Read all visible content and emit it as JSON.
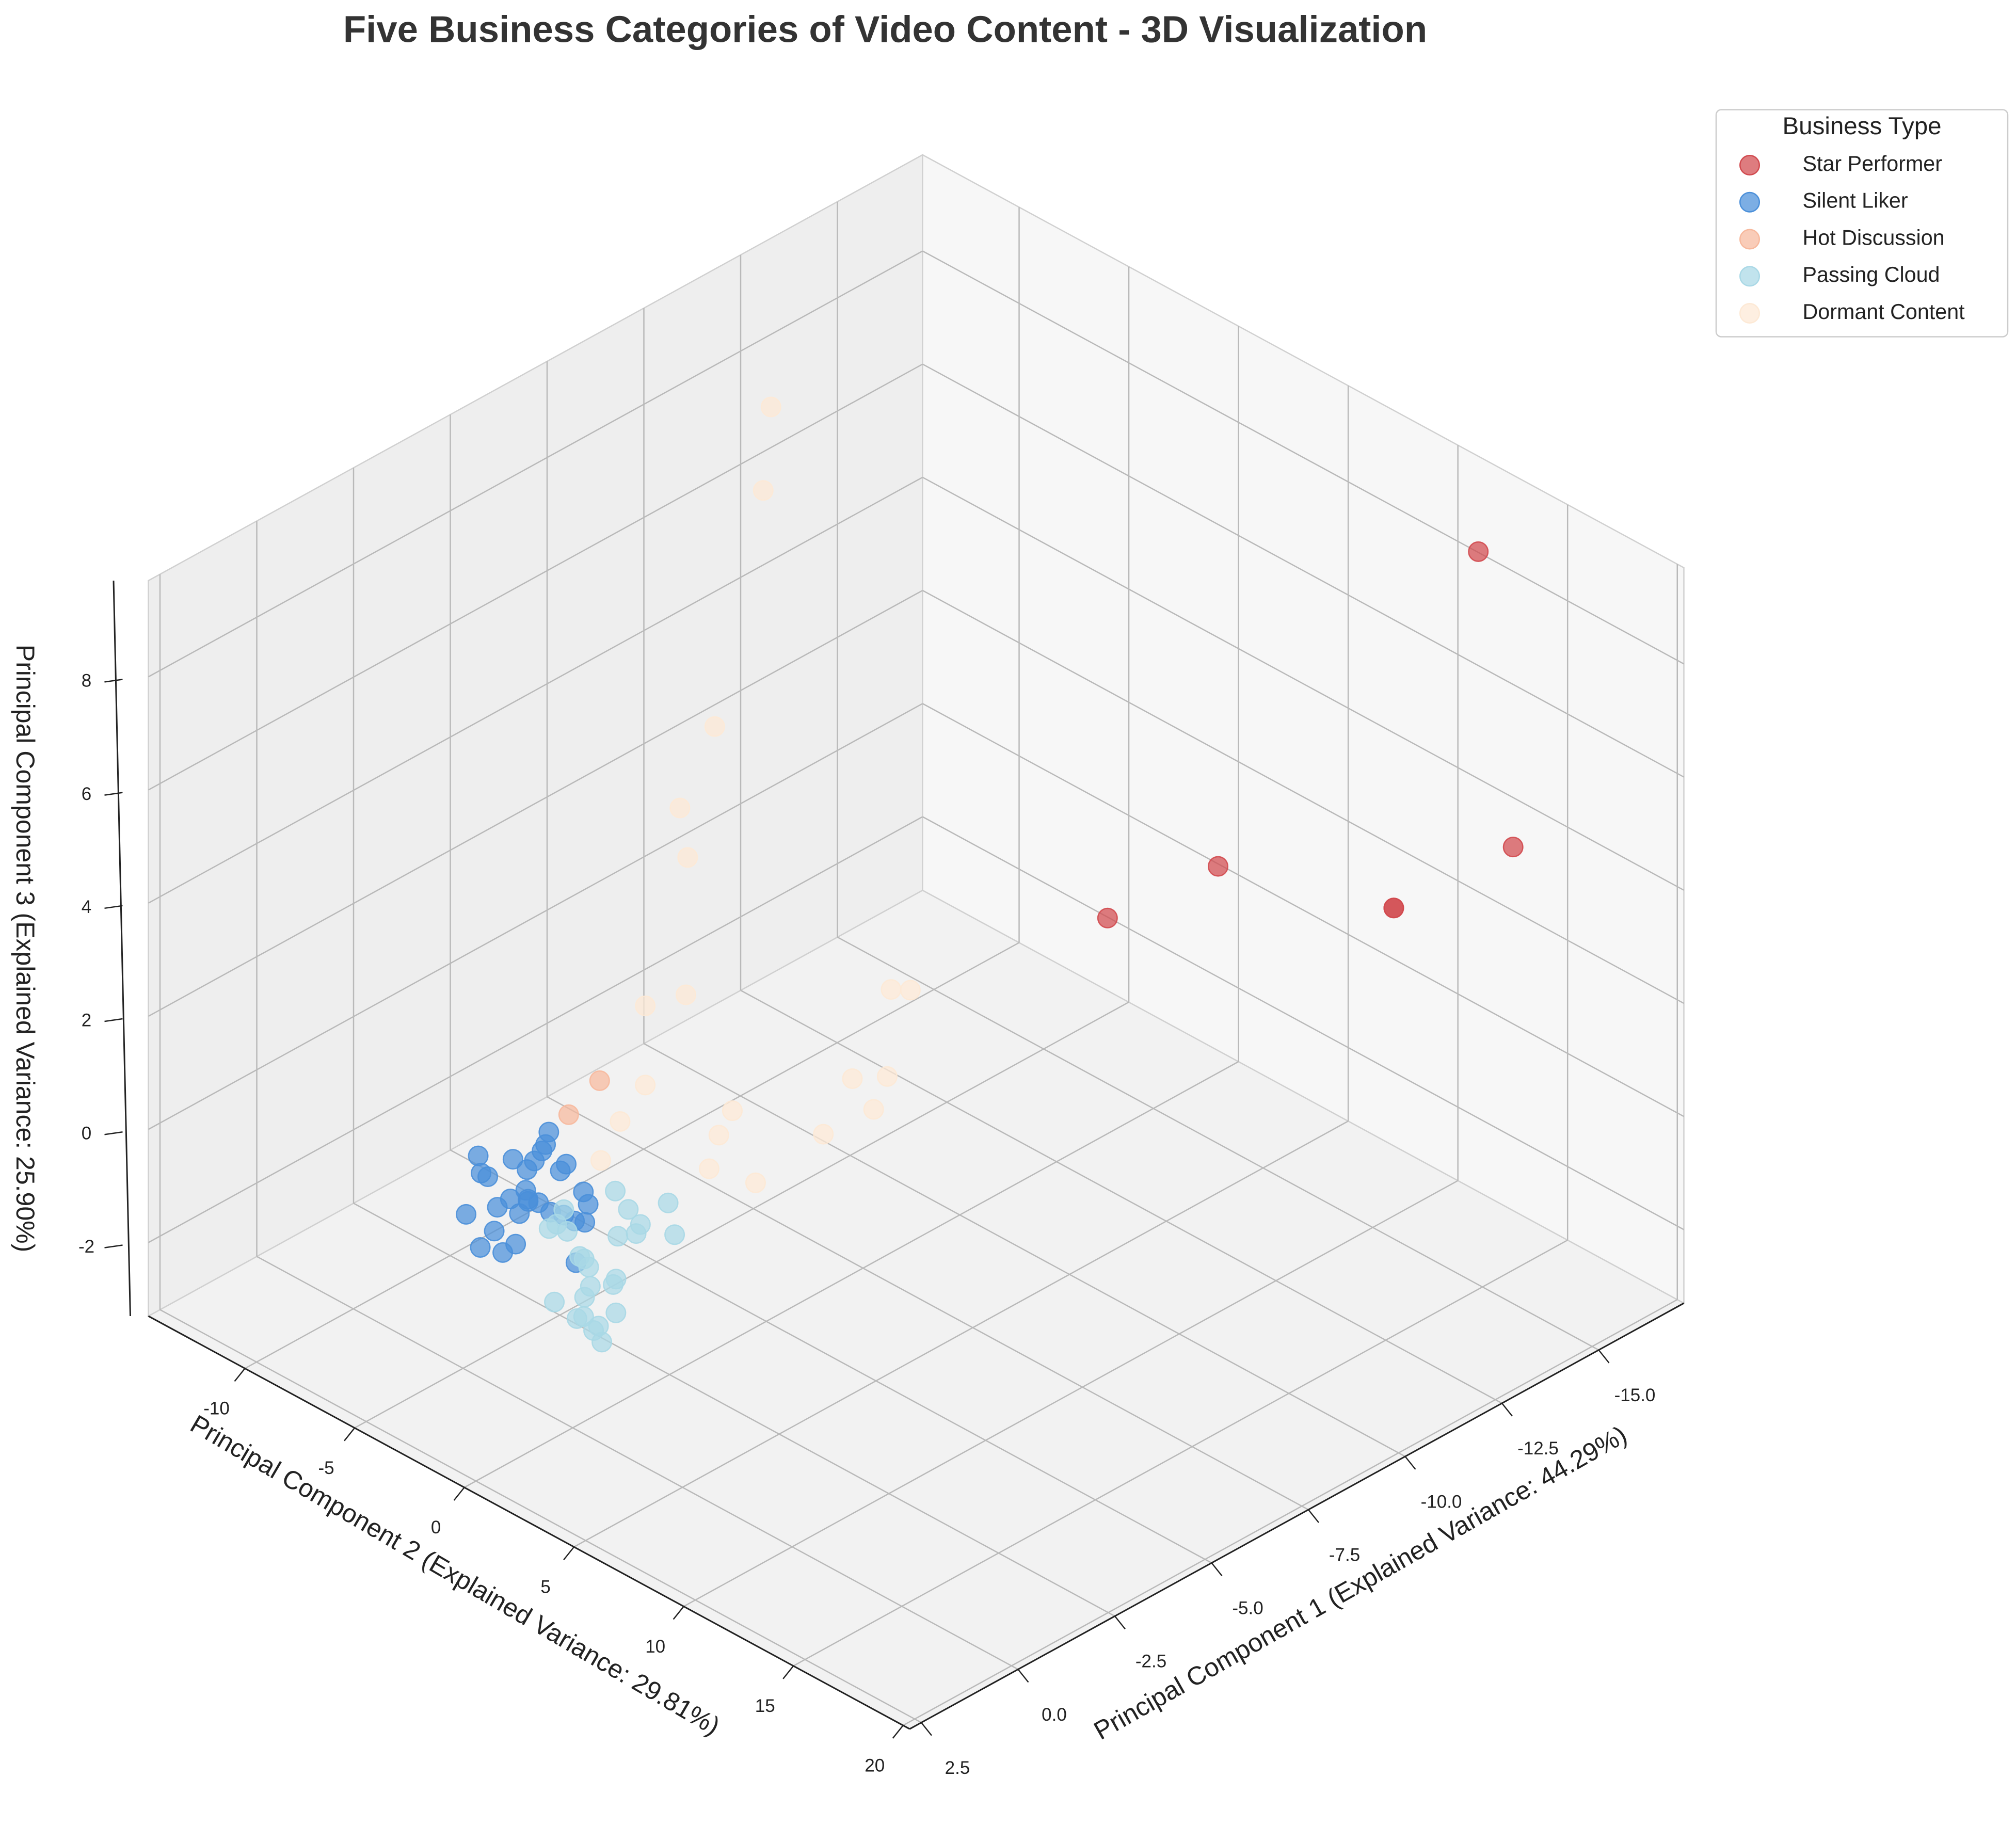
{
  "chart_data": {
    "type": "scatter3d",
    "title": "Five Business Categories of Video Content - 3D Visualization",
    "xlabel": "Principal Component 1 (Explained Variance: 44.29%)",
    "ylabel": "Principal Component 2 (Explained Variance: 29.81%)",
    "zlabel": "Principal Component 3 (Explained Variance: 25.90%)",
    "legend_title": "Business Type",
    "legend_position": "upper right",
    "grid": true,
    "xlim": [
      -17.2,
      2.8
    ],
    "ylim": [
      -14.4,
      20.3
    ],
    "zlim": [
      -3.3,
      9.7
    ],
    "xticks": [
      {
        "value": -15,
        "label": "-15.0"
      },
      -12.5,
      {
        "value": -10,
        "label": "-10.0"
      },
      -7.5,
      {
        "value": -5,
        "label": "-5.0"
      },
      -2.5,
      {
        "value": 0,
        "label": "0.0"
      },
      2.5
    ],
    "yticks": [
      -10,
      -5,
      0,
      5,
      10,
      15,
      20
    ],
    "zticks": [
      -2,
      0,
      2,
      4,
      6,
      8
    ],
    "series": [
      {
        "name": "Star Performer",
        "color": "#d1494e",
        "x": [
          -14.1,
          -15.0,
          -15.6,
          -15.6,
          -16.7,
          -15.8
        ],
        "y": [
          -0.5,
          2.95,
          9.9,
          9.9,
          13.4,
          13.4
        ],
        "z": [
          0.3,
          1.6,
          2.1,
          2.1,
          3.5,
          9.06
        ]
      },
      {
        "name": "Silent Liker",
        "color": "#4a8fd9",
        "x": [
          -0.15,
          0.3,
          -0.6,
          0.6,
          -0.9,
          0.1,
          -0.4,
          0.8,
          -0.2,
          0.4,
          -0.7,
          0.0,
          0.5,
          -0.3,
          -1.0,
          0.2,
          0.7,
          -0.5,
          0.1,
          -0.8,
          0.3,
          -0.1,
          0.6,
          -0.4,
          0.0,
          -0.6,
          0.4,
          -0.2,
          0.9,
          -0.9
        ],
        "y": [
          -2.3,
          -1.5,
          -3.2,
          -0.5,
          -2.0,
          -4.0,
          -1.0,
          -2.8,
          0.2,
          -3.6,
          -1.8,
          -2.6,
          -1.2,
          -4.4,
          -3.0,
          0.5,
          -2.2,
          -0.8,
          -3.4,
          -2.5,
          -1.9,
          -2.9,
          -3.8,
          0.0,
          -1.4,
          -3.9,
          -0.3,
          -2.1,
          -1.6,
          -1.1
        ],
        "z": [
          0.2,
          0.5,
          0.0,
          0.8,
          -0.3,
          0.4,
          1.0,
          -0.4,
          0.3,
          0.9,
          0.6,
          -0.6,
          1.2,
          0.1,
          0.7,
          -0.2,
          0.4,
          0.0,
          -0.5,
          1.1,
          0.2,
          0.8,
          -0.1,
          0.5,
          1.3,
          -0.3,
          0.6,
          0.9,
          -0.2,
          0.3
        ]
      },
      {
        "name": "Hot Discussion",
        "color": "#f7b89c",
        "x": [
          -1.2,
          -2.0
        ],
        "y": [
          -2.3,
          -2.3
        ],
        "z": [
          1.3,
          1.6
        ]
      },
      {
        "name": "Passing Cloud",
        "color": "#a9d8e6",
        "x": [
          -1.6,
          -1.2,
          -2.0,
          -1.4,
          -1.8,
          -1.0,
          -2.3,
          -1.5,
          -1.9,
          -1.3,
          -2.6,
          -3.6,
          -3.2,
          -2.8,
          -1.7,
          -1.9,
          -2.0,
          -1.1,
          -2.1,
          -1.4,
          -3.0,
          -1.6,
          -2.4,
          -1.8,
          -1.3
        ],
        "y": [
          -2.3,
          -1.8,
          -2.8,
          -3.2,
          -1.2,
          -2.6,
          -2.0,
          -0.8,
          -3.6,
          -2.1,
          -1.5,
          -2.0,
          -1.0,
          -3.0,
          -2.5,
          -2.4,
          -2.2,
          -1.4,
          -2.9,
          -0.5,
          -2.4,
          -3.9,
          -1.7,
          -2.0,
          -2.7
        ],
        "z": [
          -1.4,
          -1.1,
          -1.8,
          -0.9,
          -1.6,
          -2.0,
          -1.2,
          -1.5,
          -1.3,
          -2.3,
          -1.0,
          -1.1,
          -1.3,
          -0.8,
          -2.5,
          -2.8,
          -3.0,
          -1.7,
          -2.2,
          -1.9,
          -1.5,
          -1.2,
          -0.7,
          -2.6,
          -0.5
        ]
      },
      {
        "name": "Dormant Content",
        "color": "#fde9d5",
        "x": [
          -11.3,
          -11.1,
          -6.9,
          -6.0,
          -6.2,
          -3.15,
          -4.2,
          -9.5,
          -10.0,
          -8.5,
          -9.4,
          -9.05,
          -5.4,
          -5.05,
          -7.75,
          -4.8,
          -6.0,
          -2.5,
          -3.15,
          -2.0
        ],
        "y": [
          -10.9,
          -10.9,
          -5.7,
          -5.7,
          -5.7,
          -2.25,
          -2.25,
          -2.25,
          -2.25,
          -2.25,
          -2.25,
          -2.25,
          -2.25,
          -2.25,
          -2.25,
          -2.25,
          -2.25,
          -2.25,
          -2.25,
          -2.25
        ],
        "z": [
          8.2,
          6.8,
          5.3,
          4.2,
          3.25,
          2.5,
          2.3,
          0.4,
          0.2,
          -0.8,
          -1.1,
          -1.55,
          -0.2,
          -0.5,
          -1.5,
          -1.0,
          -1.7,
          0.7,
          1.1,
          0.2
        ]
      }
    ]
  }
}
